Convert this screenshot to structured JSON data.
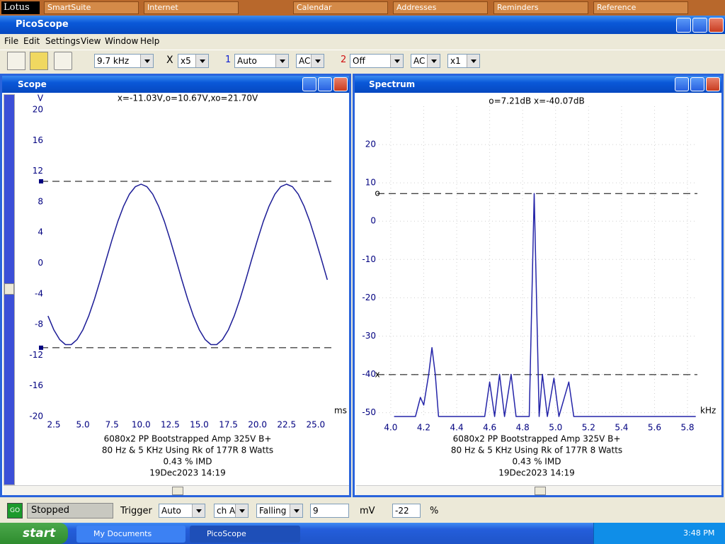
{
  "lotus_bar": {
    "items": [
      "Lotus",
      "SmartSuite",
      "Internet",
      "Calendar",
      "Addresses",
      "Reminders",
      "Reference"
    ]
  },
  "window": {
    "title": "PicoScope",
    "menu": [
      "File",
      "Edit",
      "Settings",
      "View",
      "Window",
      "Help"
    ]
  },
  "toolbar": {
    "timebase": "9.7 kHz",
    "x_label": "X",
    "zoom": "x5",
    "ch1_label": "1",
    "ch1_range": "Auto",
    "ch1_coupling": "AC",
    "ch2_label": "2",
    "ch2_range": "Off",
    "ch2_coupling": "AC",
    "ch2_mult": "x1"
  },
  "chart_data": [
    {
      "type": "line",
      "title": "Scope",
      "readout": "x=-11.03V,o=10.67V,xo=21.70V",
      "y_unit": "V",
      "x_unit": "ms",
      "x": [
        2.0,
        2.5,
        3.0,
        3.5,
        4.0,
        4.5,
        5.0,
        5.5,
        6.0,
        6.5,
        7.0,
        7.5,
        8.0,
        8.5,
        9.0,
        9.5,
        10.0,
        10.5,
        11.0,
        11.5,
        12.0,
        12.5,
        13.0,
        13.5,
        14.0,
        14.5,
        15.0,
        15.5,
        16.0,
        16.5,
        17.0,
        17.5,
        18.0,
        18.5,
        19.0,
        19.5,
        20.0,
        20.5,
        21.0,
        21.5,
        22.0,
        22.5,
        23.0,
        23.5,
        24.0,
        24.5,
        25.0,
        25.5,
        26.0
      ],
      "values": [
        -6.89,
        -8.69,
        -9.96,
        -10.62,
        -10.62,
        -9.96,
        -8.69,
        -6.89,
        -4.67,
        -2.17,
        0.46,
        3.04,
        5.43,
        7.45,
        9.0,
        9.97,
        10.3,
        9.97,
        9.0,
        7.45,
        5.43,
        3.04,
        0.46,
        -2.17,
        -4.67,
        -6.89,
        -8.69,
        -9.96,
        -10.62,
        -10.62,
        -9.96,
        -8.69,
        -6.89,
        -4.67,
        -2.17,
        0.46,
        3.04,
        5.43,
        7.45,
        9.0,
        9.97,
        10.3,
        9.97,
        9.0,
        7.45,
        5.43,
        3.04,
        0.46,
        -2.17
      ],
      "color": "#1c1c96",
      "xlim": [
        0.31,
        26.47
      ],
      "ylim": [
        -20,
        20
      ],
      "xticks": [
        2.5,
        {
          "value": 5,
          "label": "5.0"
        },
        7.5,
        {
          "value": 10,
          "label": "10.0"
        },
        12.5,
        {
          "value": 15,
          "label": "15.0"
        },
        17.5,
        {
          "value": 20,
          "label": "20.0"
        },
        22.5,
        {
          "value": 25,
          "label": "25.0"
        }
      ],
      "yticks": [
        -20,
        -16,
        -12,
        -8,
        -4,
        0,
        4,
        8,
        12,
        16,
        20
      ],
      "grid": false,
      "cursors": [
        10.67,
        -11.03
      ],
      "notes": [
        "6080x2 PP Bootstrapped Amp 325V B+",
        "80 Hz & 5 KHz Using Rk of 177R 8 Watts",
        "0.43 % IMD",
        "19Dec2023  14:19"
      ]
    },
    {
      "type": "line",
      "title": "Spectrum",
      "readout": "o=7.21dB  x=-40.07dB",
      "x_unit": "kHz",
      "x": [
        4.02,
        4.15,
        4.18,
        4.2,
        4.23,
        4.25,
        4.27,
        4.29,
        4.57,
        4.6,
        4.63,
        4.66,
        4.69,
        4.73,
        4.76,
        4.84,
        4.87,
        4.9,
        4.92,
        4.95,
        4.99,
        5.02,
        5.08,
        5.11,
        5.85
      ],
      "values": [
        -51,
        -51,
        -46,
        -48,
        -40,
        -33,
        -40,
        -51,
        -51,
        -42,
        -51,
        -40,
        -51,
        -40,
        -51,
        -51,
        7.2,
        -51,
        -40,
        -51,
        -41,
        -51,
        -42,
        -51,
        -51
      ],
      "color": "#2424a8",
      "xlim": [
        3.82,
        5.86
      ],
      "ylim": [
        -51,
        30
      ],
      "xticks": [
        {
          "value": 4,
          "label": "4.0"
        },
        4.2,
        4.4,
        4.6,
        4.8,
        {
          "value": 5,
          "label": "5.0"
        },
        5.2,
        5.4,
        5.6,
        5.8
      ],
      "yticks": [
        -50,
        -40,
        -30,
        -20,
        -10,
        0,
        10,
        20
      ],
      "grid": true,
      "cursors": [
        {
          "label": "o",
          "value": 7.21
        },
        {
          "label": "x",
          "value": -40.07
        }
      ],
      "notes": [
        "6080x2 PP Bootstrapped Amp 325V B+",
        "80 Hz & 5 KHz Using Rk of 177R 8 Watts",
        "0.43 % IMD",
        "19Dec2023  14:19"
      ]
    }
  ],
  "status": {
    "go": "GO",
    "state": "Stopped",
    "trigger_label": "Trigger",
    "trigger_mode": "Auto",
    "channel": "ch A",
    "edge": "Falling",
    "level": "9",
    "level_unit": "mV",
    "delay": "-22",
    "delay_unit": "%"
  },
  "taskbar": {
    "start": "start",
    "buttons": [
      "My Documents",
      "PicoScope"
    ],
    "clock": "3:48 PM"
  }
}
